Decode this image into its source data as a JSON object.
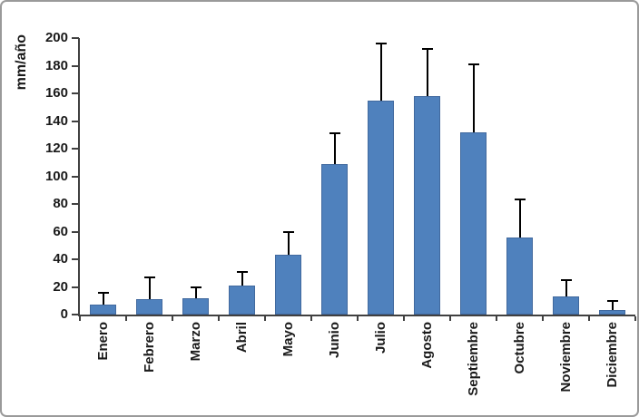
{
  "colors": {
    "bar": "#4F81BD",
    "bar_border": "#41699E",
    "error_bar": "#000000",
    "axis": "#404040",
    "text": "#1A1A1A",
    "frame_border": "#9A9A9A",
    "background": "#FFFFFF"
  },
  "chart_data": {
    "type": "bar",
    "title": "",
    "xlabel": "",
    "ylabel": "mm/año",
    "categories": [
      "Enero",
      "Febrero",
      "Marzo",
      "Abril",
      "Mayo",
      "Junio",
      "Julio",
      "Agosto",
      "Septiembre",
      "Octubre",
      "Noviembre",
      "Diciembre"
    ],
    "values": [
      7,
      11,
      12,
      21,
      43,
      109,
      155,
      158,
      132,
      56,
      13,
      3
    ],
    "error_upper": [
      16,
      27,
      20,
      31,
      60,
      131,
      196,
      192,
      181,
      83,
      25,
      10
    ],
    "error_bars": "plus-direction, cap at top",
    "ylim": [
      0,
      200
    ],
    "yticks": [
      0,
      20,
      40,
      60,
      80,
      100,
      120,
      140,
      160,
      180,
      200
    ],
    "grid": false,
    "legend": "none",
    "x_tick_labels_rotation_deg": -90
  }
}
